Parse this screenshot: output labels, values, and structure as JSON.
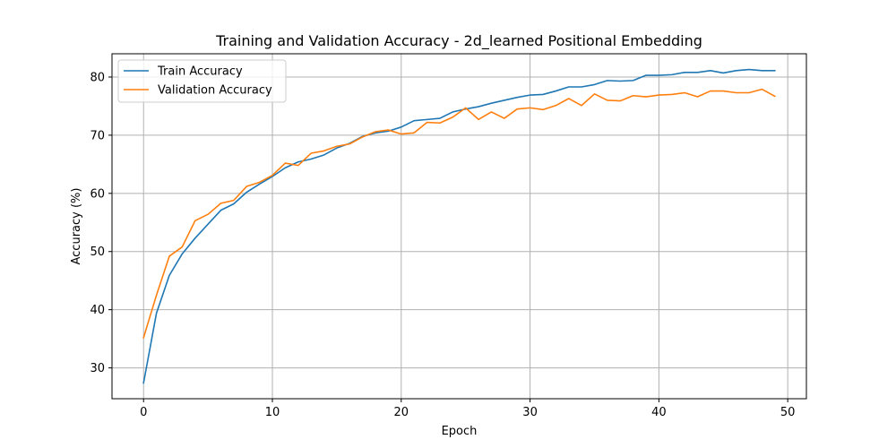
{
  "chart_data": {
    "type": "line",
    "title": "Training and Validation Accuracy  - 2d_learned Positional Embedding",
    "xlabel": "Epoch",
    "ylabel": "Accuracy (%)",
    "xlim": [
      -2.45,
      51.45
    ],
    "ylim": [
      24.7,
      84.0
    ],
    "xticks": [
      0,
      10,
      20,
      30,
      40,
      50
    ],
    "yticks": [
      30,
      40,
      50,
      60,
      70,
      80
    ],
    "grid": true,
    "legend_position": "upper-left",
    "x": [
      0,
      1,
      2,
      3,
      4,
      5,
      6,
      7,
      8,
      9,
      10,
      11,
      12,
      13,
      14,
      15,
      16,
      17,
      18,
      19,
      20,
      21,
      22,
      23,
      24,
      25,
      26,
      27,
      28,
      29,
      30,
      31,
      32,
      33,
      34,
      35,
      36,
      37,
      38,
      39,
      40,
      41,
      42,
      43,
      44,
      45,
      46,
      47,
      48,
      49
    ],
    "series": [
      {
        "name": "Train Accuracy",
        "color": "#1f77b4",
        "values": [
          27.4,
          39.4,
          45.9,
          49.6,
          52.3,
          54.7,
          57.1,
          58.2,
          60.2,
          61.6,
          62.9,
          64.4,
          65.4,
          65.9,
          66.6,
          67.8,
          68.6,
          69.8,
          70.4,
          70.7,
          71.4,
          72.5,
          72.7,
          72.9,
          74.0,
          74.5,
          74.9,
          75.5,
          76.0,
          76.5,
          76.9,
          77.0,
          77.6,
          78.3,
          78.3,
          78.7,
          79.4,
          79.3,
          79.4,
          80.3,
          80.3,
          80.4,
          80.8,
          80.8,
          81.1,
          80.7,
          81.1,
          81.3,
          81.1,
          81.1
        ]
      },
      {
        "name": "Validation Accuracy",
        "color": "#ff7f0e",
        "values": [
          35.2,
          42.5,
          49.2,
          50.8,
          55.3,
          56.4,
          58.3,
          58.8,
          61.2,
          61.9,
          63.1,
          65.2,
          64.8,
          66.9,
          67.3,
          68.1,
          68.5,
          69.7,
          70.6,
          70.9,
          70.2,
          70.4,
          72.2,
          72.1,
          73.1,
          74.7,
          72.7,
          74.0,
          72.9,
          74.5,
          74.7,
          74.4,
          75.1,
          76.3,
          75.1,
          77.1,
          76.0,
          75.9,
          76.8,
          76.6,
          76.9,
          77.0,
          77.3,
          76.6,
          77.6,
          77.6,
          77.3,
          77.3,
          77.9,
          76.7
        ]
      }
    ]
  }
}
